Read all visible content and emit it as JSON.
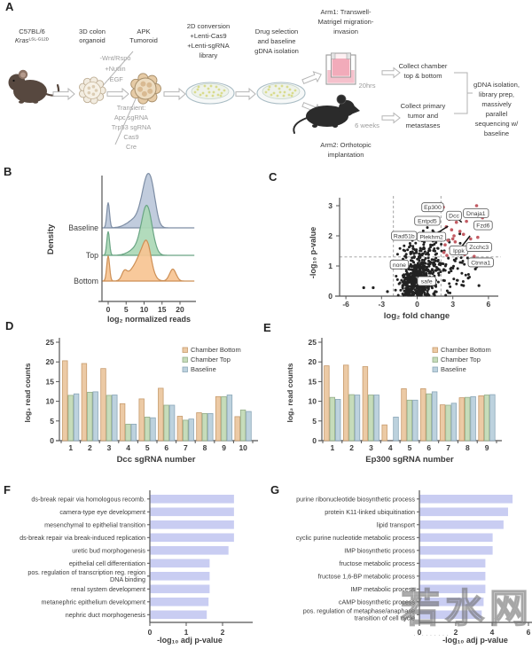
{
  "panels": {
    "A": "A",
    "B": "B",
    "C": "C",
    "D": "D",
    "E": "E",
    "F": "F",
    "G": "G"
  },
  "watermark": {
    "text": "若水网",
    "dots": "·········"
  },
  "panelA": {
    "strain_line1": "C57BL/6",
    "strain_gene": "Kras",
    "strain_allele": "LSL-G12D",
    "organoid": [
      "3D colon",
      "organoid"
    ],
    "media": [
      "-Wnt/Rspo",
      "+Nutlin",
      "-EGF"
    ],
    "tumoroid": [
      "APK",
      "Tumoroid"
    ],
    "transient": [
      "Transient:",
      "Apc sgRNA",
      "Trp53 sgRNA",
      "Cas9",
      "Cre"
    ],
    "conversion": [
      "2D conversion",
      "+Lenti-Cas9",
      "+Lenti-sgRNA",
      "library"
    ],
    "selection": [
      "Drug selection",
      "and baseline",
      "gDNA isolation"
    ],
    "arm1": [
      "Arm1: Transwell-",
      "Matrigel migration-",
      "invasion"
    ],
    "arm1_time": "20hrs",
    "collect1": [
      "Collect chamber",
      "top & bottom"
    ],
    "arm2_time": "6 weeks",
    "collect2": [
      "Collect primary",
      "tumor and",
      "metastases"
    ],
    "outcome": [
      "gDNA isolation,",
      "library prep,",
      "massively",
      "parallel",
      "sequencing w/",
      "baseline"
    ],
    "arm2": [
      "Arm2: Orthotopic",
      "implantation"
    ]
  },
  "chart_data": [
    {
      "panel": "B",
      "type": "area",
      "ylabel": "Density",
      "xlabel": "log₂ normalized reads",
      "x_ticks": [
        0,
        5,
        10,
        15,
        20
      ],
      "rows": [
        {
          "name": "Baseline",
          "fill": "#bcc8da",
          "stroke": "#7d8da4",
          "peaks": [
            [
              0,
              0.55,
              0.38
            ],
            [
              8,
              0.2,
              2.4
            ],
            [
              11,
              1.0,
              1.5
            ],
            [
              12.5,
              0.25,
              1.0
            ]
          ]
        },
        {
          "name": "Top",
          "fill": "#abd8b6",
          "stroke": "#6aa584",
          "peaks": [
            [
              0,
              0.52,
              0.38
            ],
            [
              8.3,
              0.16,
              2.2
            ],
            [
              10.8,
              1.0,
              1.45
            ]
          ]
        },
        {
          "name": "Bottom",
          "fill": "#f7c492",
          "stroke": "#cd8f55",
          "peaks": [
            [
              0,
              0.55,
              0.4
            ],
            [
              4.5,
              0.16,
              0.7
            ],
            [
              7,
              0.2,
              1.8
            ],
            [
              10,
              0.6,
              1.7
            ],
            [
              11,
              0.32,
              1.0
            ],
            [
              18,
              0.26,
              0.9
            ]
          ]
        }
      ]
    },
    {
      "panel": "C",
      "type": "scatter",
      "xlabel": "log₂ fold change",
      "ylabel": "-log₁₀ p-value",
      "x_ticks": [
        -6,
        -3,
        0,
        3,
        6
      ],
      "y_ticks": [
        0,
        1,
        2,
        3
      ],
      "vlines": [
        -2,
        2
      ],
      "hline": 1.3,
      "point_color": "#222222",
      "hit_color": "#c25b63",
      "clusters": [
        [
          300,
          -0.1,
          0.4,
          0.6,
          0.32
        ],
        [
          170,
          0.2,
          1.0,
          0.75,
          0.45
        ],
        [
          80,
          1.2,
          0.75,
          1.0,
          0.5
        ],
        [
          50,
          2.6,
          0.9,
          1.2,
          0.5
        ],
        [
          30,
          0.4,
          1.75,
          0.85,
          0.2
        ],
        [
          20,
          -1.2,
          0.5,
          0.5,
          0.3
        ]
      ],
      "outliers": [
        [
          -4.5,
          0.28
        ],
        [
          -3.7,
          0.28
        ],
        [
          -2.5,
          0.15
        ],
        [
          5.6,
          1.1
        ],
        [
          5.9,
          1.55
        ],
        [
          -1.6,
          1.05
        ],
        [
          4.3,
          0.6
        ],
        [
          4.9,
          0.9
        ],
        [
          3.9,
          0.35
        ],
        [
          5.2,
          0.35
        ]
      ],
      "hits": [
        [
          2.2,
          2.95
        ],
        [
          5.0,
          3.0
        ],
        [
          2.7,
          2.55
        ],
        [
          3.3,
          2.45
        ],
        [
          5.3,
          2.3
        ],
        [
          2.45,
          2.3
        ],
        [
          2.9,
          2.2
        ],
        [
          3.6,
          2.15
        ],
        [
          2.2,
          2.05
        ],
        [
          3.1,
          2.0
        ],
        [
          5.1,
          1.95
        ],
        [
          3.9,
          2.05
        ],
        [
          4.5,
          1.9
        ],
        [
          2.6,
          1.85
        ],
        [
          3.2,
          1.8
        ],
        [
          2.35,
          1.7
        ],
        [
          3.7,
          1.62
        ],
        [
          2.8,
          1.58
        ],
        [
          4.25,
          1.55
        ],
        [
          2.25,
          1.45
        ],
        [
          3.05,
          1.42
        ],
        [
          4.0,
          1.38
        ],
        [
          2.5,
          1.35
        ],
        [
          4.8,
          1.32
        ],
        [
          3.4,
          1.5
        ],
        [
          3.0,
          1.9
        ],
        [
          5.5,
          2.6
        ],
        [
          4.15,
          2.48
        ]
      ],
      "labels": [
        {
          "text": "Ep300",
          "x": 1.3,
          "y": 2.95
        },
        {
          "text": "Dcc",
          "x": 3.1,
          "y": 2.67,
          "lx": 3.75,
          "ly": 2.45
        },
        {
          "text": "Dnaja1",
          "x": 4.95,
          "y": 2.75
        },
        {
          "text": "Entpd5",
          "x": 0.85,
          "y": 2.5
        },
        {
          "text": "Rad51b",
          "x": -1.1,
          "y": 2.0,
          "lx": 0.3,
          "ly": 2.0
        },
        {
          "text": "Plekhm2",
          "x": 1.2,
          "y": 1.97,
          "lx": 2.6,
          "ly": 2.32
        },
        {
          "text": "Fzd6",
          "x": 5.55,
          "y": 2.35
        },
        {
          "text": "Ippk",
          "x": 3.5,
          "y": 1.52,
          "lx": 4.45,
          "ly": 2.0
        },
        {
          "text": "Zcchc3",
          "x": 5.2,
          "y": 1.63
        },
        {
          "text": "Ctnna1",
          "x": 5.35,
          "y": 1.12
        },
        {
          "text": "none",
          "x": -1.5,
          "y": 1.05
        },
        {
          "text": "safe",
          "x": 0.8,
          "y": 0.5
        }
      ]
    },
    {
      "panel": "D",
      "type": "bar",
      "xlabel": "Dcc sgRNA number",
      "ylabel": "log₂ read counts",
      "y_ticks": [
        0,
        5,
        10,
        15,
        20,
        25
      ],
      "ylim": [
        0,
        25
      ],
      "categories": [
        "1",
        "2",
        "3",
        "4",
        "5",
        "6",
        "7",
        "8",
        "9",
        "10"
      ],
      "series": [
        {
          "name": "Chamber Bottom",
          "fill": "#eccaa5",
          "stroke": "#c79b6d",
          "values": [
            20.3,
            19.6,
            18.3,
            9.4,
            10.6,
            13.3,
            6.2,
            7.1,
            11.2,
            6.1
          ]
        },
        {
          "name": "Chamber Top",
          "fill": "#c6dcba",
          "stroke": "#94ad89",
          "values": [
            11.5,
            12.3,
            11.5,
            4.2,
            6.0,
            9.0,
            5.2,
            6.9,
            11.2,
            7.8
          ]
        },
        {
          "name": "Baseline",
          "fill": "#bdd2de",
          "stroke": "#8ba7b8",
          "values": [
            11.9,
            12.4,
            11.6,
            4.2,
            5.8,
            9.0,
            5.5,
            6.9,
            11.6,
            7.4
          ]
        }
      ]
    },
    {
      "panel": "E",
      "type": "bar",
      "xlabel": "Ep300 sgRNA number",
      "ylabel": "log₂ read counts",
      "y_ticks": [
        0,
        5,
        10,
        15,
        20,
        25
      ],
      "ylim": [
        0,
        25
      ],
      "categories": [
        "1",
        "2",
        "3",
        "4",
        "5",
        "6",
        "7",
        "8",
        "9"
      ],
      "series": [
        {
          "name": "Chamber Bottom",
          "fill": "#eccaa5",
          "stroke": "#c79b6d",
          "values": [
            19.0,
            19.2,
            18.8,
            4.0,
            13.2,
            13.2,
            9.1,
            10.9,
            11.4
          ]
        },
        {
          "name": "Chamber Top",
          "fill": "#c6dcba",
          "stroke": "#94ad89",
          "values": [
            11.0,
            11.7,
            11.6,
            0,
            10.3,
            11.9,
            9.0,
            11.0,
            11.6
          ]
        },
        {
          "name": "Baseline",
          "fill": "#bdd2de",
          "stroke": "#8ba7b8",
          "values": [
            10.5,
            11.6,
            11.6,
            6.0,
            10.3,
            12.4,
            9.5,
            11.2,
            11.7
          ]
        }
      ]
    },
    {
      "panel": "F",
      "type": "hbar",
      "xlabel": "-log₁₀ adj p-value",
      "x_ticks": [
        0,
        1,
        2
      ],
      "xlim": [
        0,
        2.9
      ],
      "fill": "#c9cdf2",
      "categories": [
        "ds-break repair via homologous recomb.",
        "camera-type eye development",
        "mesenchymal to epithelial transition",
        "ds-break repair via break-induced replication",
        "uretic bud morphogenesis",
        "epithelial cell differentiation",
        "pos. regulation of transcription reg. region\nDNA binding",
        "renal system development",
        "metanephric epithelium development",
        "nephric duct morphogenesis"
      ],
      "values": [
        2.3,
        2.3,
        2.3,
        2.3,
        2.15,
        1.63,
        1.63,
        1.63,
        1.6,
        1.55
      ]
    },
    {
      "panel": "G",
      "type": "hbar",
      "xlabel": "-log₁₀ adj p-value",
      "x_ticks": [
        0,
        2,
        4,
        6
      ],
      "xlim": [
        0,
        6.3
      ],
      "fill": "#c9cdf2",
      "categories": [
        "purine ribonucleotide biosynthetic process",
        "protein K11-linked ubiquitination",
        "lipid transport",
        "cyclic purine nucleotide metabolic process",
        "IMP biosynthetic process",
        "fructose metabolic process",
        "fructose 1,6-BP metabolic process",
        "IMP metabolic process",
        "cAMP biosynthetic process",
        "pos. regulation of metaphase/anaphase\ntransition of cell cycle"
      ],
      "values": [
        5.1,
        4.85,
        4.6,
        4.0,
        4.0,
        3.6,
        3.6,
        3.6,
        3.5,
        3.4
      ]
    }
  ]
}
